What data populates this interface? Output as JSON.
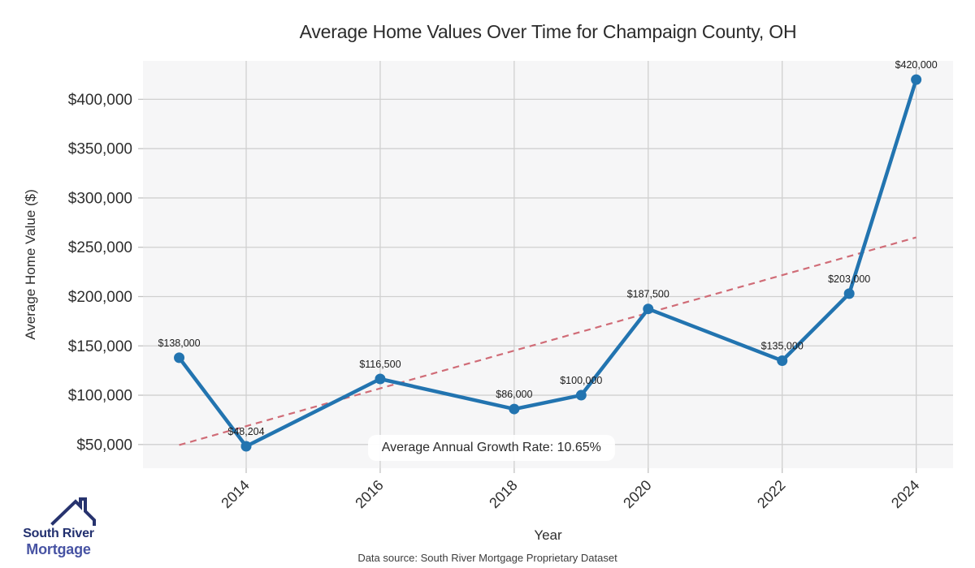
{
  "figure": {
    "title": "Average Home Values Over Time for Champaign County, OH",
    "xlabel": "Year",
    "ylabel": "Average Home Value ($)",
    "footer": "Data source: South River Mortgage Proprietary Dataset"
  },
  "logo": {
    "line1": "South River",
    "line2": "Mortgage"
  },
  "chart_data": {
    "type": "line",
    "title": "Average Home Values Over Time for Champaign County, OH",
    "xlabel": "Year",
    "ylabel": "Average Home Value ($)",
    "x": [
      2013,
      2014,
      2016,
      2018,
      2019,
      2020,
      2022,
      2023,
      2024
    ],
    "values": [
      138000,
      48204,
      116500,
      86000,
      100000,
      187500,
      135000,
      203000,
      420000
    ],
    "point_labels": [
      "$138,000",
      "$48,204",
      "$116,500",
      "$86,000",
      "$100,000",
      "$187,500",
      "$135,000",
      "$203,000",
      "$420,000"
    ],
    "xlim": [
      2012.46,
      2024.55
    ],
    "ylim": [
      26000,
      439000
    ],
    "xticks": [
      2014,
      2016,
      2018,
      2020,
      2022,
      2024
    ],
    "xtick_labels": [
      "2014",
      "2016",
      "2018",
      "2020",
      "2022",
      "2024"
    ],
    "yticks": [
      50000,
      100000,
      150000,
      200000,
      250000,
      300000,
      350000,
      400000
    ],
    "ytick_labels": [
      "$50,000",
      "$100,000",
      "$150,000",
      "$200,000",
      "$250,000",
      "$300,000",
      "$350,000",
      "$400,000"
    ],
    "grid": true,
    "legend": "none",
    "trend": {
      "x": [
        2013,
        2024
      ],
      "y": [
        49500,
        260000
      ],
      "style": "dashed"
    },
    "annotation": {
      "text": "Average Annual Growth Rate: 10.65%",
      "x": 2017.66,
      "y": 46500
    },
    "colors": {
      "line": "#2274b0",
      "marker": "#2274b0",
      "trend": "#d06c77",
      "plot_bg": "#f6f6f7",
      "grid": "#d0d0d0",
      "tick_stub": "#c2c2c2",
      "tick_text": "#2e2e2e",
      "point_label_text": "#1c1c1c"
    }
  }
}
